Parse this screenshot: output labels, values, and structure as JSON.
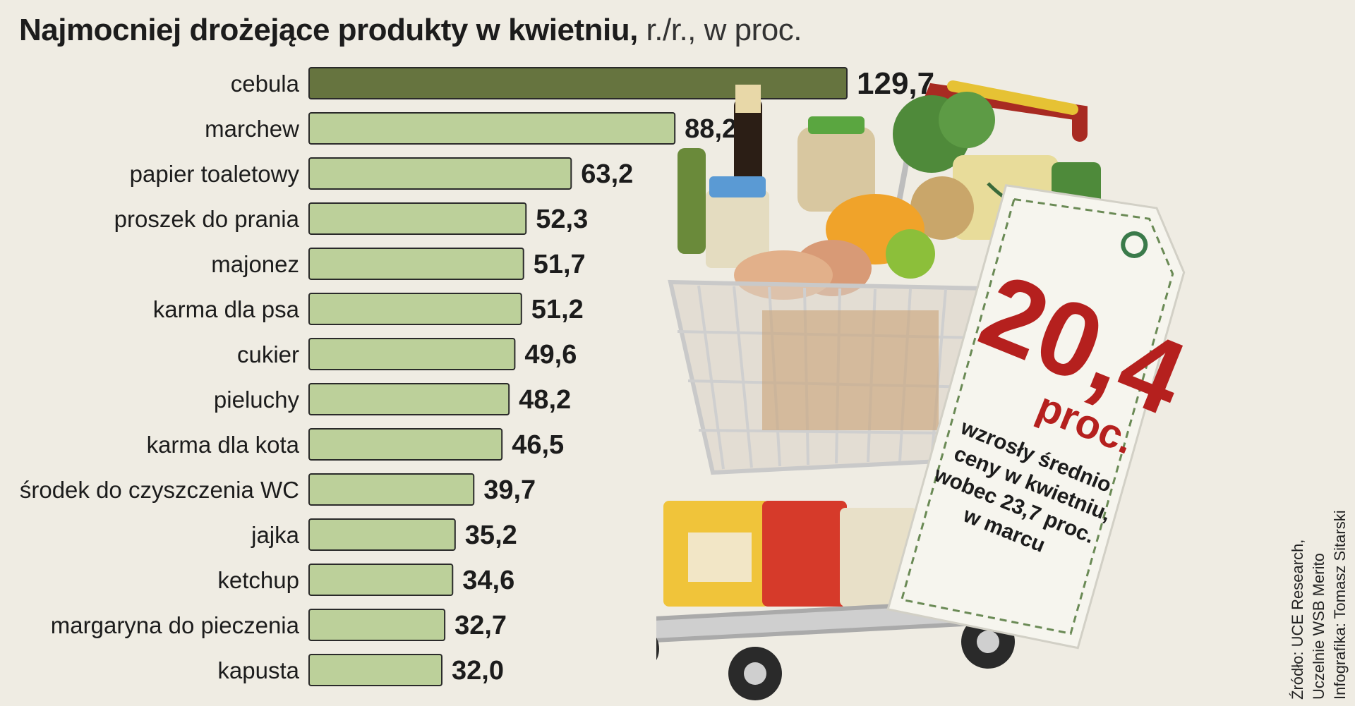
{
  "title": {
    "main": "Najmocniej drożejące produkty w kwietniu,",
    "sub": " r./r., w proc."
  },
  "chart_data": {
    "type": "bar",
    "orientation": "horizontal",
    "categories": [
      "cebula",
      "marchew",
      "papier toaletowy",
      "proszek do prania",
      "majonez",
      "karma dla psa",
      "cukier",
      "pieluchy",
      "karma dla kota",
      "środek do czyszczenia WC",
      "jajka",
      "ketchup",
      "margaryna do pieczenia",
      "kapusta"
    ],
    "values": [
      129.7,
      88.2,
      63.2,
      52.3,
      51.7,
      51.2,
      49.6,
      48.2,
      46.5,
      39.7,
      35.2,
      34.6,
      32.7,
      32.0
    ],
    "value_labels": [
      "129,7",
      "88,2",
      "63,2",
      "52,3",
      "51,7",
      "51,2",
      "49,6",
      "48,2",
      "46,5",
      "39,7",
      "35,2",
      "34,6",
      "32,7",
      "32,0"
    ],
    "unit": "proc.",
    "xlim": [
      0,
      130
    ],
    "grid": false,
    "colors": {
      "highlight": "#66743f",
      "default": "#bcd09a",
      "background": "#efece3"
    }
  },
  "tag": {
    "big_value": "20,4",
    "unit": "proc.",
    "lines": [
      "wzrosły średnio",
      "ceny w kwietniu,",
      "wobec 23,7 proc.",
      "w marcu"
    ],
    "color": "#b5201e"
  },
  "source": {
    "line1": "Źródło: UCE Research,",
    "line2": "Uczelnie WSB Merito",
    "line3": "Infografika: Tomasz Sitarski"
  }
}
